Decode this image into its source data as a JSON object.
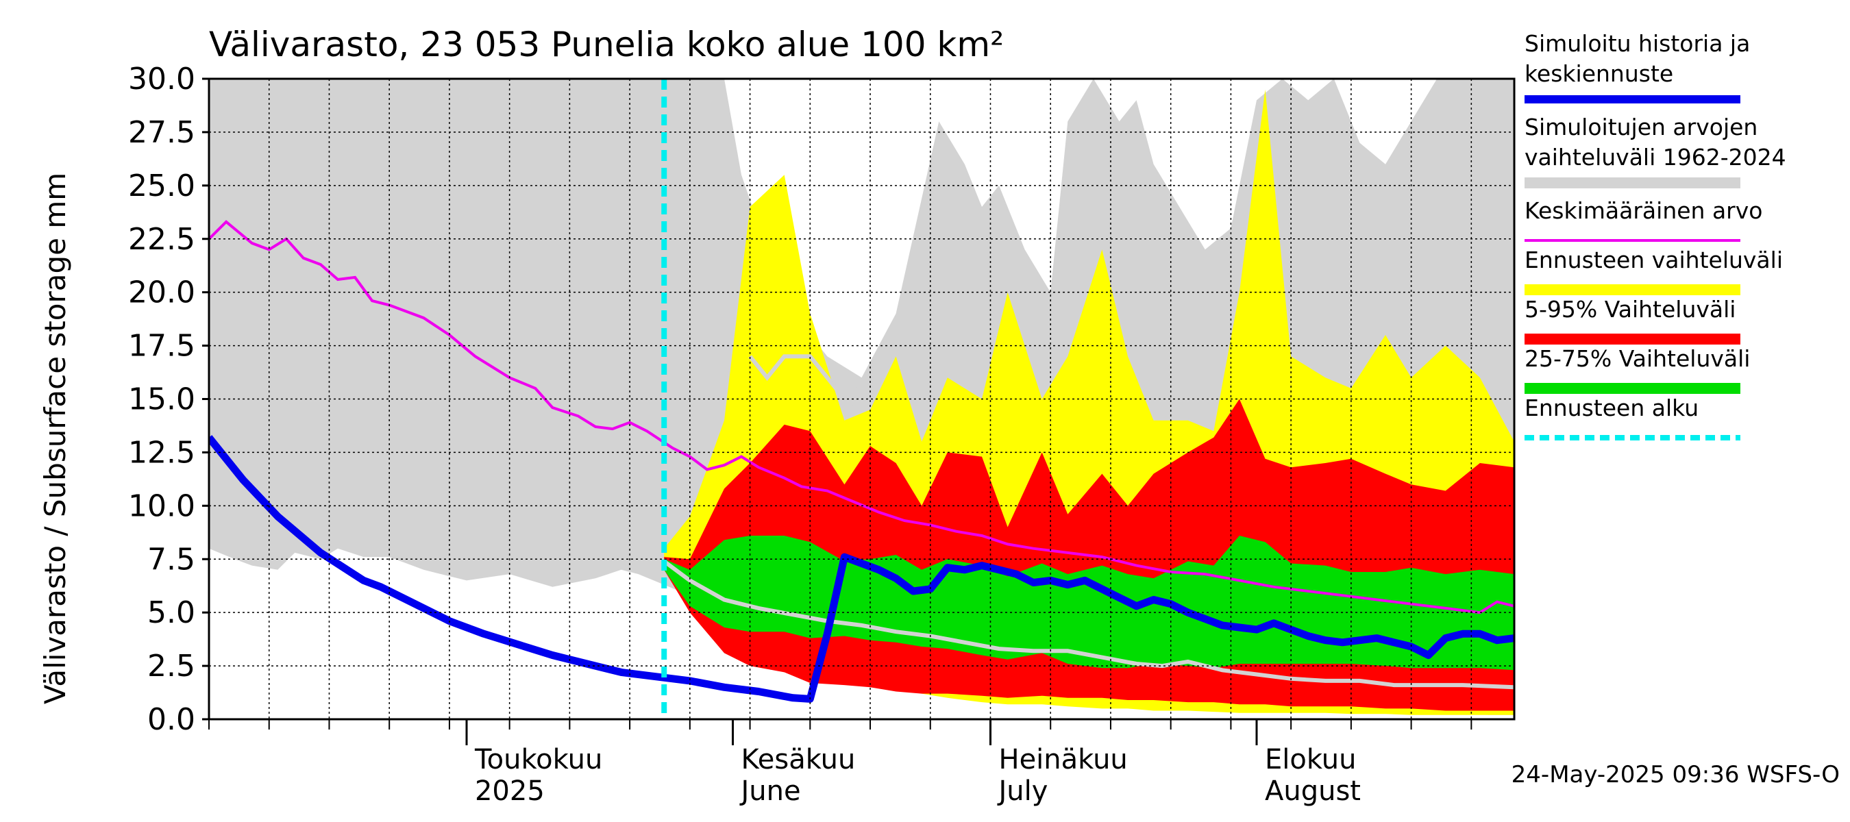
{
  "chart_data": {
    "type": "area",
    "title": "Välivarasto, 23 053 Punelia koko alue 100 km²",
    "ylabel": "Välivarasto / Subsurface storage  mm",
    "ylim": [
      0,
      30
    ],
    "yticks": [
      "0.0",
      "2.5",
      "5.0",
      "7.5",
      "10.0",
      "12.5",
      "15.0",
      "17.5",
      "20.0",
      "22.5",
      "25.0",
      "27.5",
      "30.0"
    ],
    "x_start": "2025-04-01",
    "x_end": "2025-08-31",
    "forecast_start": "2025-05-24",
    "month_labels": [
      {
        "date": "2025-05-01",
        "line1": "Toukokuu",
        "line2": "2025"
      },
      {
        "date": "2025-06-01",
        "line1": "Kesäkuu",
        "line2": "June"
      },
      {
        "date": "2025-07-01",
        "line1": "Heinäkuu",
        "line2": "July"
      },
      {
        "date": "2025-08-01",
        "line1": "Elokuu",
        "line2": "August"
      }
    ],
    "footer": "24-May-2025 09:36 WSFS-O",
    "colors": {
      "history_range": "#d3d3d3",
      "forecast_range": "#ffff00",
      "p5_95": "#ff0000",
      "p25_75": "#00dd00",
      "mean": "#ee00ee",
      "simulated": "#0000ee",
      "forecast_start": "#00eeee",
      "median_forecast": "#d3d3d3"
    },
    "legend": [
      {
        "label": "Simuloitu historia ja",
        "label2": "keskiennuste",
        "color": "#0000ee",
        "style": "thick"
      },
      {
        "label": "Simuloitujen arvojen",
        "label2": "vaihteluväli 1962-2024",
        "color": "#d3d3d3",
        "style": "band"
      },
      {
        "label": "Keskimääräinen arvo",
        "label2": "",
        "color": "#ee00ee",
        "style": "thin"
      },
      {
        "label": "Ennusteen vaihteluväli",
        "label2": "",
        "color": "#ffff00",
        "style": "band"
      },
      {
        "label": "5-95% Vaihteluväli",
        "label2": "",
        "color": "#ff0000",
        "style": "band"
      },
      {
        "label": "25-75% Vaihteluväli",
        "label2": "",
        "color": "#00dd00",
        "style": "band"
      },
      {
        "label": "Ennusteen alku",
        "label2": "",
        "color": "#00eeee",
        "style": "dashed"
      }
    ],
    "hist_days": [
      0,
      3,
      5,
      8,
      10,
      13,
      15,
      18,
      21,
      25,
      30,
      35,
      40,
      45,
      48,
      50,
      53,
      56,
      60,
      62,
      65,
      68,
      70,
      72,
      76,
      80,
      85,
      88,
      90,
      92,
      95,
      98,
      100,
      103,
      106,
      108,
      110,
      113,
      116,
      119,
      122,
      125,
      128,
      131,
      134,
      137,
      140,
      143,
      146,
      149,
      152
    ],
    "hist_upper": [
      30,
      30,
      30,
      30,
      30,
      30,
      30,
      30,
      30,
      30,
      30,
      30,
      30,
      30,
      30,
      30,
      30,
      30,
      30,
      25.5,
      22,
      20,
      18,
      17,
      16,
      19,
      28,
      26,
      24,
      25,
      22,
      20,
      28,
      30,
      28,
      29,
      26,
      24,
      22,
      23,
      29,
      30,
      29,
      30,
      27,
      26,
      28,
      30,
      30,
      30,
      30
    ],
    "hist_lower": [
      8,
      7.5,
      7.2,
      7,
      7.8,
      7.5,
      8,
      7.6,
      7.6,
      7,
      6.5,
      6.8,
      6.2,
      6.6,
      7,
      6.8,
      6.3,
      5.8,
      5,
      4.8,
      4.3,
      4,
      3.8,
      3.8,
      3.2,
      2.8,
      2.2,
      2.2,
      2.1,
      1.7,
      1.5,
      1.2,
      1.2,
      1,
      1.1,
      0.9,
      0.8,
      0.9,
      0.7,
      0.6,
      0.7,
      0.6,
      0.5,
      0.5,
      0.4,
      0.4,
      0.4,
      0.3,
      0.3,
      0.2,
      0.2
    ],
    "fc_days": [
      53,
      56,
      60,
      63,
      67,
      70,
      74,
      77,
      80,
      83,
      86,
      90,
      93,
      97,
      100,
      104,
      107,
      110,
      114,
      117,
      120,
      123,
      126,
      130,
      133,
      137,
      140,
      144,
      148,
      152
    ],
    "fc_upper": [
      8,
      9.5,
      14,
      24,
      25.5,
      19,
      14,
      14.5,
      17,
      13,
      16,
      15,
      20,
      15,
      17,
      22,
      17,
      14,
      14,
      13.5,
      20,
      29.5,
      17,
      16,
      15.5,
      18,
      16,
      17.5,
      16,
      13
    ],
    "fc_lower": [
      7.2,
      6.2,
      4.5,
      3.5,
      2.8,
      2.4,
      2,
      1.7,
      1.4,
      1.2,
      1,
      0.8,
      0.7,
      0.7,
      0.6,
      0.5,
      0.5,
      0.4,
      0.4,
      0.35,
      0.3,
      0.3,
      0.3,
      0.3,
      0.25,
      0.25,
      0.2,
      0.2,
      0.2,
      0.2
    ],
    "p95": [
      7.6,
      7.5,
      10.8,
      12,
      13.8,
      13.5,
      11,
      12.8,
      12,
      10,
      12.5,
      12.3,
      9,
      12.5,
      9.6,
      11.5,
      10,
      11.5,
      12.5,
      13.2,
      15,
      12.2,
      11.8,
      12,
      12.2,
      11.5,
      11,
      10.7,
      12,
      11.8
    ],
    "p75": [
      7.5,
      7,
      8.4,
      8.6,
      8.6,
      8.3,
      7.4,
      7.5,
      7.7,
      7,
      7.5,
      7.2,
      6.7,
      7.3,
      6.8,
      7.2,
      6.8,
      6.6,
      7.4,
      7.2,
      8.6,
      8.3,
      7.3,
      7.2,
      6.9,
      6.9,
      7.1,
      6.8,
      7,
      6.8
    ],
    "p25": [
      7,
      5.3,
      4.3,
      4.1,
      4.1,
      3.8,
      3.9,
      3.7,
      3.6,
      3.4,
      3.3,
      3,
      2.8,
      3.1,
      2.6,
      2.4,
      2.4,
      2.6,
      2.5,
      2.4,
      2.6,
      2.6,
      2.6,
      2.6,
      2.6,
      2.5,
      2.4,
      2.4,
      2.4,
      2.3
    ],
    "p5": [
      7,
      5,
      3.1,
      2.5,
      2.2,
      1.7,
      1.6,
      1.5,
      1.3,
      1.2,
      1.2,
      1.1,
      1,
      1.1,
      1,
      1,
      0.9,
      0.9,
      0.8,
      0.8,
      0.7,
      0.7,
      0.6,
      0.6,
      0.6,
      0.5,
      0.5,
      0.4,
      0.4,
      0.4
    ],
    "median_forecast": [
      [
        53,
        7.4
      ],
      [
        56,
        6.5
      ],
      [
        60,
        5.6
      ],
      [
        64,
        5.2
      ],
      [
        68,
        4.9
      ],
      [
        72,
        4.6
      ],
      [
        76,
        4.4
      ],
      [
        80,
        4.1
      ],
      [
        84,
        3.9
      ],
      [
        88,
        3.6
      ],
      [
        92,
        3.3
      ],
      [
        96,
        3.2
      ],
      [
        100,
        3.2
      ],
      [
        104,
        2.9
      ],
      [
        108,
        2.6
      ],
      [
        111,
        2.5
      ],
      [
        114,
        2.7
      ],
      [
        118,
        2.3
      ],
      [
        122,
        2.1
      ],
      [
        126,
        1.9
      ],
      [
        130,
        1.8
      ],
      [
        134,
        1.8
      ],
      [
        138,
        1.6
      ],
      [
        142,
        1.6
      ],
      [
        146,
        1.6
      ],
      [
        152,
        1.5
      ]
    ],
    "median_hist_part": [
      [
        63,
        17
      ],
      [
        65,
        16
      ],
      [
        67,
        17
      ],
      [
        70,
        17
      ],
      [
        72,
        16
      ],
      [
        74,
        15
      ],
      [
        75,
        14.8
      ],
      [
        76,
        16
      ]
    ],
    "mean_values": [
      [
        0,
        22.5
      ],
      [
        2,
        23.3
      ],
      [
        5,
        22.3
      ],
      [
        7,
        22.0
      ],
      [
        9,
        22.5
      ],
      [
        11,
        21.6
      ],
      [
        13,
        21.3
      ],
      [
        15,
        20.6
      ],
      [
        17,
        20.7
      ],
      [
        19,
        19.6
      ],
      [
        21,
        19.4
      ],
      [
        25,
        18.8
      ],
      [
        28,
        18.0
      ],
      [
        31,
        17.0
      ],
      [
        35,
        16.0
      ],
      [
        38,
        15.5
      ],
      [
        40,
        14.6
      ],
      [
        43,
        14.2
      ],
      [
        45,
        13.7
      ],
      [
        47,
        13.6
      ],
      [
        49,
        13.9
      ],
      [
        51,
        13.5
      ],
      [
        54,
        12.7
      ],
      [
        56,
        12.3
      ],
      [
        58,
        11.7
      ],
      [
        60,
        11.9
      ],
      [
        62,
        12.3
      ],
      [
        64,
        11.8
      ],
      [
        67,
        11.3
      ],
      [
        69,
        10.9
      ],
      [
        72,
        10.7
      ],
      [
        75,
        10.2
      ],
      [
        78,
        9.7
      ],
      [
        81,
        9.3
      ],
      [
        84,
        9.1
      ],
      [
        87,
        8.8
      ],
      [
        90,
        8.6
      ],
      [
        93,
        8.2
      ],
      [
        96,
        8.0
      ],
      [
        100,
        7.8
      ],
      [
        104,
        7.6
      ],
      [
        108,
        7.2
      ],
      [
        112,
        6.9
      ],
      [
        116,
        6.8
      ],
      [
        120,
        6.5
      ],
      [
        124,
        6.2
      ],
      [
        128,
        6.0
      ],
      [
        132,
        5.8
      ],
      [
        136,
        5.6
      ],
      [
        140,
        5.4
      ],
      [
        144,
        5.2
      ],
      [
        148,
        5.0
      ],
      [
        150,
        5.5
      ],
      [
        152,
        5.3
      ],
      [
        155,
        5.6
      ],
      [
        158,
        5.8
      ],
      [
        162,
        5.9
      ],
      [
        166,
        6.2
      ]
    ],
    "simulated_values": [
      [
        0,
        13.2
      ],
      [
        4,
        11.2
      ],
      [
        8,
        9.5
      ],
      [
        13,
        7.8
      ],
      [
        18,
        6.5
      ],
      [
        20,
        6.2
      ],
      [
        24,
        5.4
      ],
      [
        28,
        4.6
      ],
      [
        32,
        4.0
      ],
      [
        36,
        3.5
      ],
      [
        40,
        3.0
      ],
      [
        44,
        2.6
      ],
      [
        48,
        2.2
      ],
      [
        52,
        2.0
      ],
      [
        56,
        1.8
      ],
      [
        60,
        1.5
      ],
      [
        64,
        1.3
      ],
      [
        68,
        1.0
      ],
      [
        70,
        0.95
      ],
      [
        72,
        4.0
      ],
      [
        74,
        7.6
      ],
      [
        76,
        7.3
      ],
      [
        78,
        7.0
      ],
      [
        80,
        6.6
      ],
      [
        82,
        6.0
      ],
      [
        84,
        6.1
      ],
      [
        86,
        7.1
      ],
      [
        88,
        7.0
      ],
      [
        90,
        7.2
      ],
      [
        92,
        7.0
      ],
      [
        94,
        6.8
      ],
      [
        96,
        6.4
      ],
      [
        98,
        6.5
      ],
      [
        100,
        6.3
      ],
      [
        102,
        6.5
      ],
      [
        104,
        6.1
      ],
      [
        106,
        5.7
      ],
      [
        108,
        5.3
      ],
      [
        110,
        5.6
      ],
      [
        112,
        5.4
      ],
      [
        114,
        5.0
      ],
      [
        116,
        4.7
      ],
      [
        118,
        4.4
      ],
      [
        120,
        4.3
      ],
      [
        122,
        4.2
      ],
      [
        124,
        4.5
      ],
      [
        126,
        4.2
      ],
      [
        128,
        3.9
      ],
      [
        130,
        3.7
      ],
      [
        132,
        3.6
      ],
      [
        134,
        3.7
      ],
      [
        136,
        3.8
      ],
      [
        138,
        3.6
      ],
      [
        140,
        3.4
      ],
      [
        142,
        3.0
      ],
      [
        144,
        3.8
      ],
      [
        146,
        4.0
      ],
      [
        148,
        4.0
      ],
      [
        150,
        3.7
      ],
      [
        152,
        3.8
      ]
    ]
  }
}
